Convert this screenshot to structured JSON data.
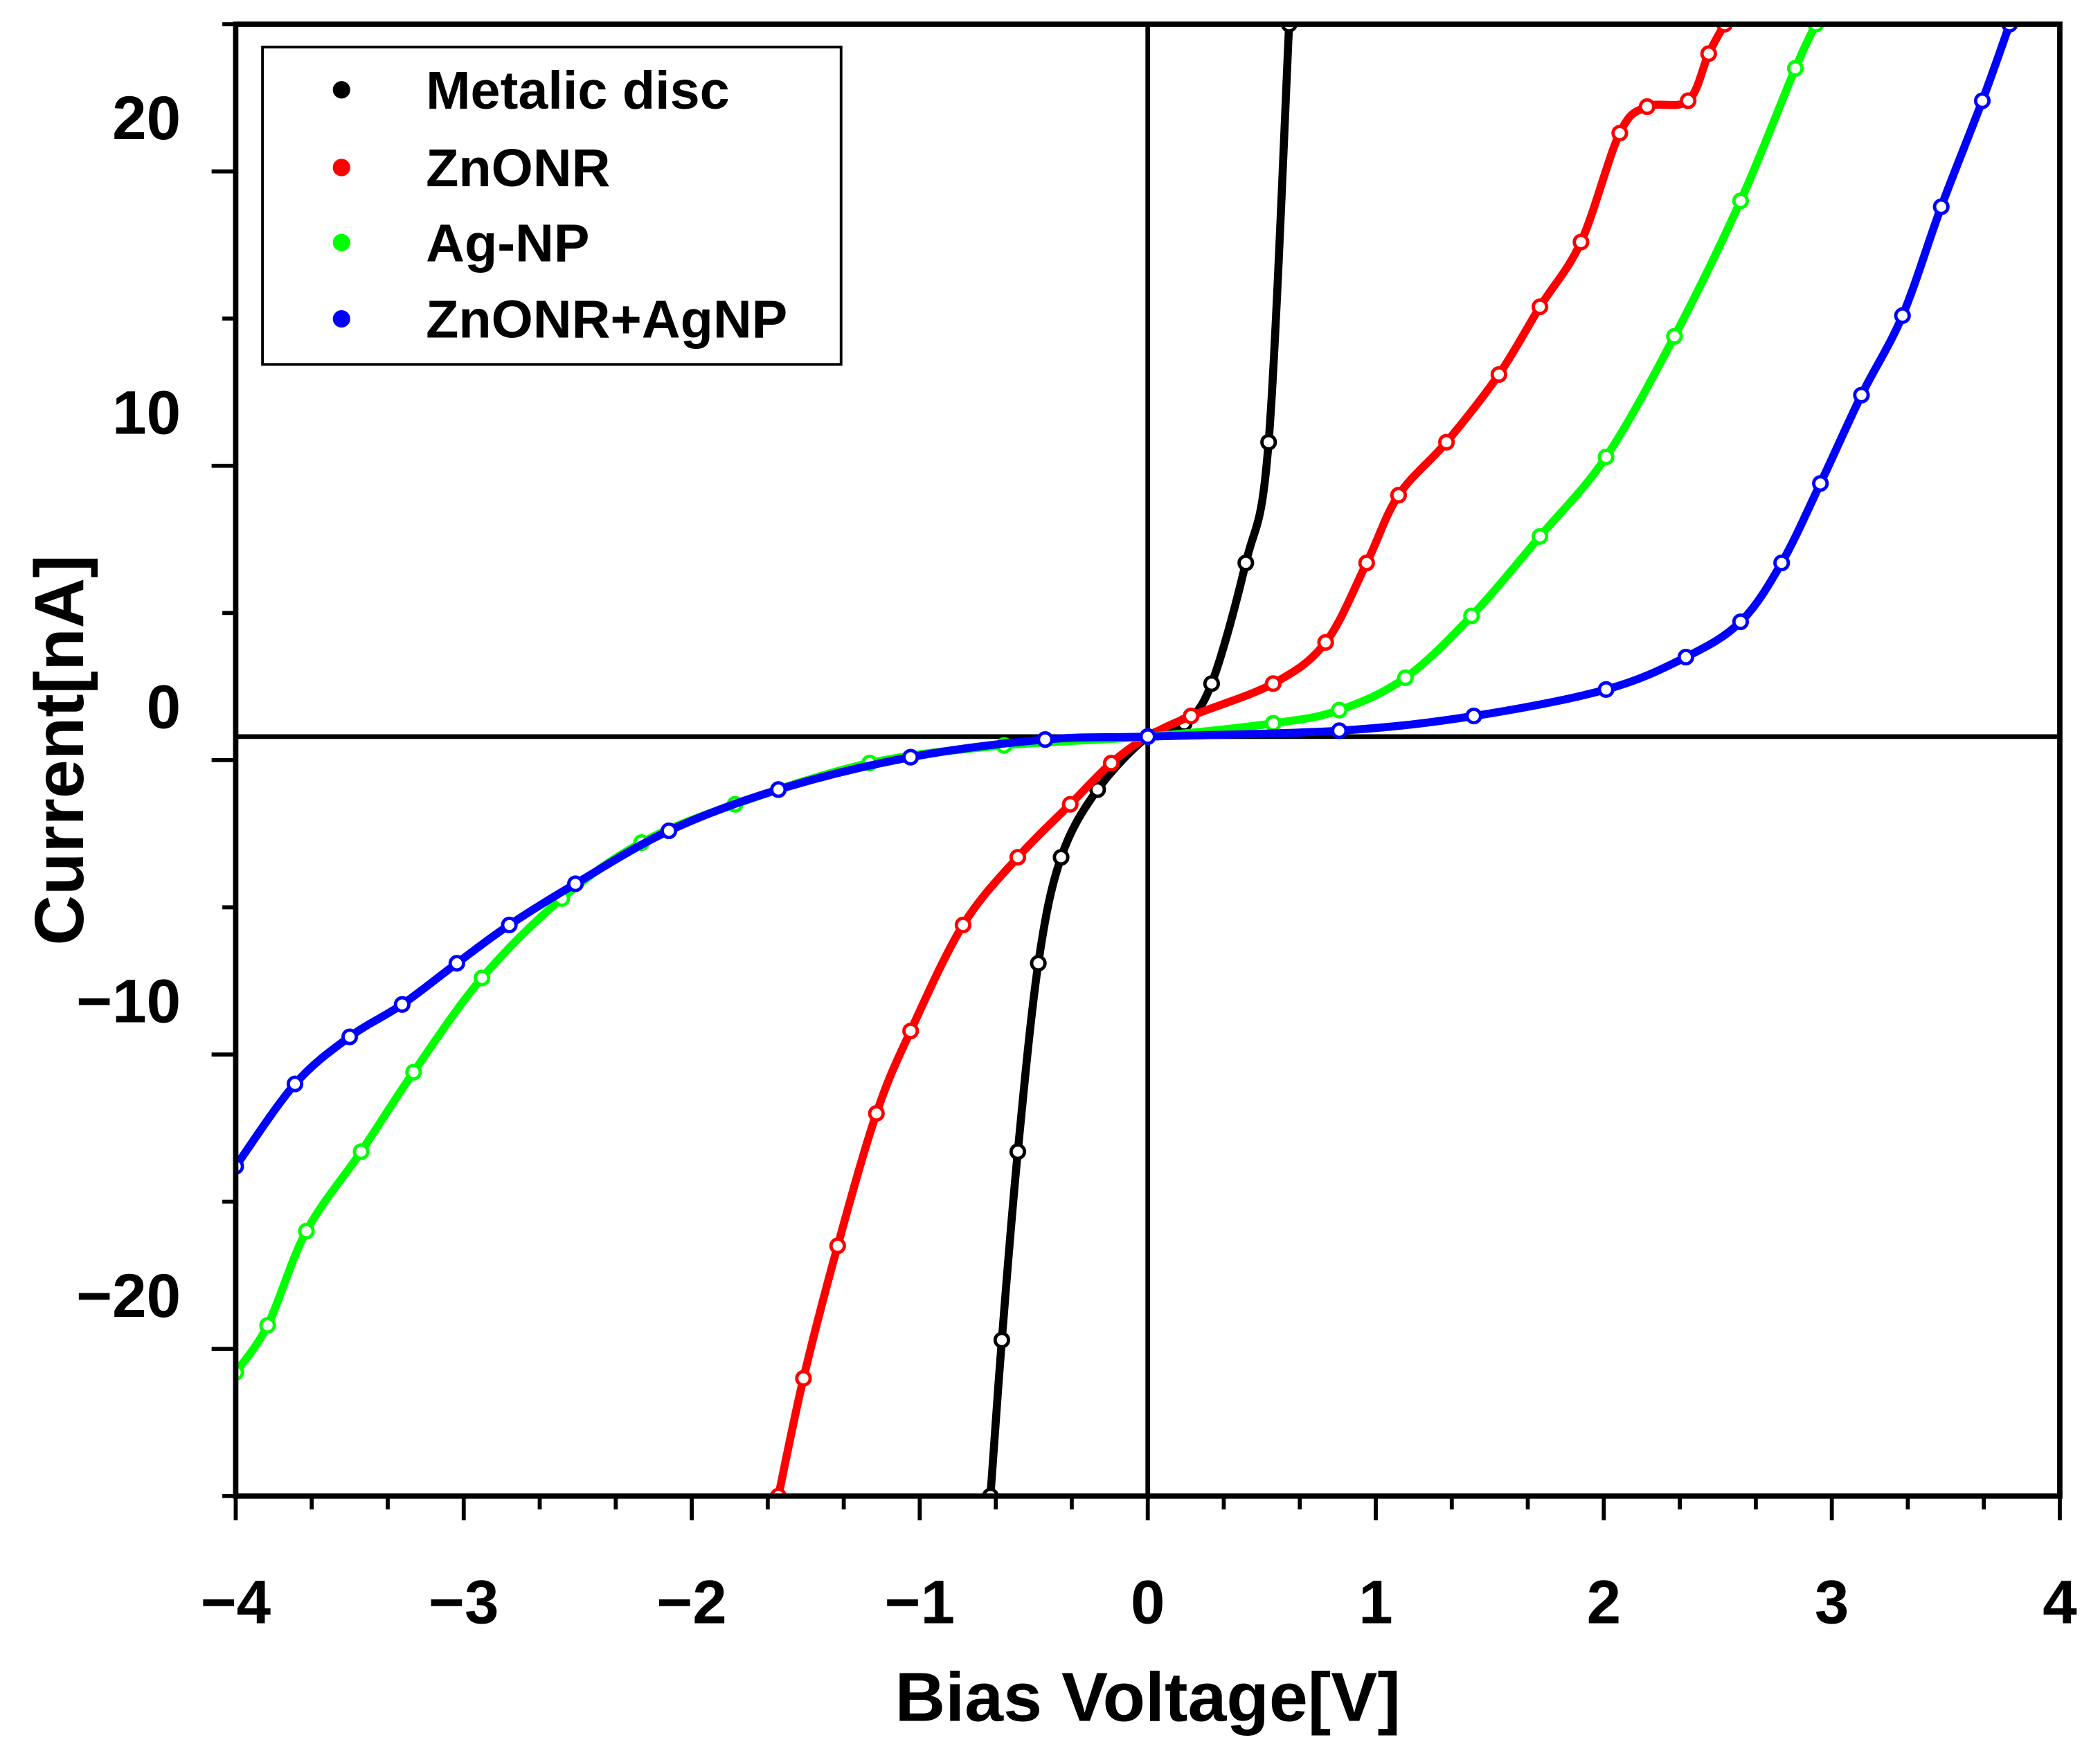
{
  "chart_data": {
    "type": "line",
    "title": "",
    "xlabel": "Bias Voltage[V]",
    "ylabel": "Current[nA]",
    "xlim": [
      -4,
      4
    ],
    "ylim": [
      -25,
      25
    ],
    "xticks": [
      -4,
      -3,
      -2,
      -1,
      0,
      1,
      2,
      3,
      4
    ],
    "xtick_labels": [
      "−4",
      "−3",
      "−2",
      "−1",
      "0",
      "1",
      "2",
      "3",
      "4"
    ],
    "yticks": [
      20,
      10,
      0,
      -10,
      -20
    ],
    "ytick_labels": [
      "20",
      "10",
      "0",
      "−10",
      "−20"
    ],
    "grid": false,
    "legend_position": "top-left",
    "reference_lines": {
      "vertical_x": 0,
      "horizontal_y": 0.8
    },
    "series": [
      {
        "name": "Metalic disc",
        "color": "#000000",
        "x": [
          -0.69,
          -0.64,
          -0.57,
          -0.48,
          -0.38,
          -0.22,
          0,
          0.16,
          0.28,
          0.43,
          0.53,
          0.62
        ],
        "y": [
          -25.0,
          -19.7,
          -13.3,
          -6.9,
          -3.3,
          -1.0,
          0.8,
          1.25,
          2.6,
          6.7,
          10.8,
          25.0
        ]
      },
      {
        "name": "ZnONR",
        "color": "#ff0000",
        "x": [
          -1.62,
          -1.51,
          -1.36,
          -1.19,
          -1.04,
          -0.81,
          -0.57,
          -0.34,
          -0.16,
          0,
          0.19,
          0.55,
          0.78,
          0.96,
          1.1,
          1.31,
          1.54,
          1.72,
          1.9,
          2.07,
          2.19,
          2.37,
          2.46,
          2.53
        ],
        "y": [
          -25.0,
          -21.0,
          -16.5,
          -12.0,
          -9.2,
          -5.6,
          -3.3,
          -1.5,
          -0.1,
          0.8,
          1.5,
          2.6,
          4.0,
          6.7,
          9.0,
          10.8,
          13.1,
          15.4,
          17.6,
          21.3,
          22.2,
          22.4,
          24.0,
          25.0
        ]
      },
      {
        "name": "Ag-NP",
        "color": "#00ff00",
        "x": [
          -4.0,
          -3.86,
          -3.69,
          -3.45,
          -3.22,
          -2.92,
          -2.57,
          -2.22,
          -1.81,
          -1.22,
          -0.63,
          0,
          0.55,
          0.84,
          1.13,
          1.42,
          1.72,
          2.01,
          2.31,
          2.6,
          2.84,
          2.93
        ],
        "y": [
          -20.8,
          -19.2,
          -16.0,
          -13.3,
          -10.6,
          -7.4,
          -4.7,
          -2.8,
          -1.5,
          -0.1,
          0.5,
          0.8,
          1.25,
          1.7,
          2.8,
          4.9,
          7.6,
          10.3,
          14.4,
          19.0,
          23.5,
          25.0
        ]
      },
      {
        "name": "ZnONR+AgNP",
        "color": "#0000ff",
        "x": [
          -4.0,
          -3.74,
          -3.5,
          -3.27,
          -3.03,
          -2.8,
          -2.51,
          -2.1,
          -1.62,
          -1.04,
          -0.45,
          0,
          0.84,
          1.43,
          2.01,
          2.36,
          2.6,
          2.78,
          2.95,
          3.13,
          3.31,
          3.48,
          3.66,
          3.78
        ],
        "y": [
          -13.8,
          -11.0,
          -9.4,
          -8.3,
          -6.9,
          -5.6,
          -4.2,
          -2.4,
          -1.0,
          0.1,
          0.7,
          0.8,
          1.0,
          1.5,
          2.4,
          3.5,
          4.7,
          6.7,
          9.4,
          12.4,
          15.1,
          18.8,
          22.4,
          25.0
        ]
      }
    ]
  }
}
